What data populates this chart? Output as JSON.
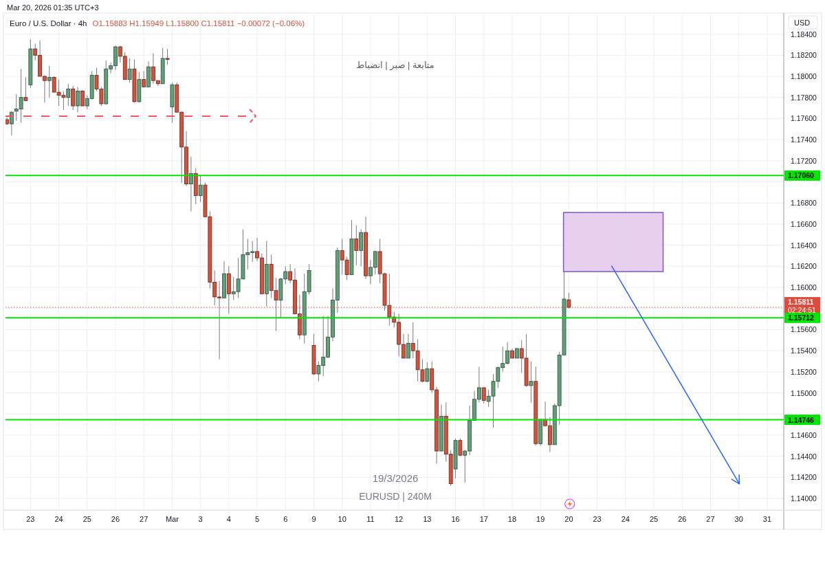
{
  "chart_data": {
    "type": "candlestick",
    "title": "Euro / U.S. Dollar · 4h",
    "subtitle": "O1.15883 H1.15949 L1.15800 C1.15811 −0.00072 (−0.06%)",
    "ylabel": "USD",
    "annotations": [
      "Mar 20, 2026 01:35 UTC+3",
      "متابعة | صبر | انضباط",
      "19/3/2026",
      "EURUSD | 240M",
      "02:24:51"
    ],
    "categories": [
      null,
      null,
      null,
      null,
      null,
      "23",
      null,
      null,
      null,
      null,
      null,
      "24",
      null,
      null,
      null,
      null,
      null,
      "25",
      null,
      null,
      null,
      null,
      null,
      "26",
      null,
      null,
      null,
      null,
      null,
      "27",
      null,
      null,
      null,
      null,
      null,
      "Mar",
      null,
      null,
      null,
      null,
      null,
      "3",
      null,
      null,
      null,
      null,
      null,
      "4",
      null,
      null,
      null,
      null,
      null,
      "5",
      null,
      null,
      null,
      null,
      null,
      "6",
      null,
      null,
      null,
      null,
      null,
      "9",
      null,
      null,
      null,
      null,
      null,
      "10",
      null,
      null,
      null,
      null,
      null,
      "11",
      null,
      null,
      null,
      null,
      null,
      "12",
      null,
      null,
      null,
      null,
      null,
      "13",
      null,
      null,
      null,
      null,
      null,
      "16",
      null,
      null,
      null,
      null,
      null,
      "17",
      null,
      null,
      null,
      null,
      null,
      "18",
      null,
      null,
      null,
      null,
      null,
      "19",
      null,
      null,
      null,
      null,
      null,
      "20",
      null,
      null,
      null,
      null,
      null,
      "23",
      null,
      null,
      null,
      null,
      null,
      "24",
      null,
      null,
      null,
      null,
      null,
      "25",
      null,
      null,
      null,
      null,
      null,
      "26",
      null,
      null,
      null,
      null,
      null,
      "27",
      null,
      null,
      null,
      null,
      null,
      "30",
      null,
      null,
      null,
      null,
      null,
      "31",
      null,
      null,
      null
    ],
    "ohlc": [
      [
        1.1759,
        1.1761,
        1.1754,
        1.1755
      ],
      [
        1.1755,
        1.1767,
        1.1744,
        1.1766
      ],
      [
        1.1767,
        1.1783,
        1.1758,
        1.1769
      ],
      [
        1.1769,
        1.1807,
        1.1756,
        1.178
      ],
      [
        1.178,
        1.1799,
        1.1777,
        1.1777
      ],
      [
        1.1792,
        1.1835,
        1.1789,
        1.1826
      ],
      [
        1.1826,
        1.1831,
        1.1815,
        1.182
      ],
      [
        1.182,
        1.1834,
        1.18,
        1.18
      ],
      [
        1.18,
        1.1801,
        1.1775,
        1.1796
      ],
      [
        1.1796,
        1.181,
        1.178,
        1.1799
      ],
      [
        1.1799,
        1.18,
        1.1785,
        1.1785
      ],
      [
        1.1785,
        1.1797,
        1.1772,
        1.1782
      ],
      [
        1.1782,
        1.1786,
        1.1768,
        1.178
      ],
      [
        1.178,
        1.1793,
        1.1772,
        1.1788
      ],
      [
        1.1788,
        1.1791,
        1.1768,
        1.1772
      ],
      [
        1.1772,
        1.179,
        1.1766,
        1.1786
      ],
      [
        1.1786,
        1.1787,
        1.1772,
        1.1772
      ],
      [
        1.1772,
        1.1782,
        1.1769,
        1.1779
      ],
      [
        1.1779,
        1.1805,
        1.1778,
        1.1801
      ],
      [
        1.1801,
        1.1808,
        1.1786,
        1.1788
      ],
      [
        1.1788,
        1.179,
        1.1772,
        1.1774
      ],
      [
        1.1774,
        1.1815,
        1.1773,
        1.1807
      ],
      [
        1.1807,
        1.1813,
        1.1803,
        1.181
      ],
      [
        1.181,
        1.1829,
        1.1806,
        1.1828
      ],
      [
        1.1828,
        1.1829,
        1.1813,
        1.1819
      ],
      [
        1.1819,
        1.1823,
        1.1797,
        1.1797
      ],
      [
        1.1797,
        1.1817,
        1.1794,
        1.1807
      ],
      [
        1.1807,
        1.1816,
        1.1775,
        1.1776
      ],
      [
        1.1776,
        1.1804,
        1.1775,
        1.1797
      ],
      [
        1.1797,
        1.1805,
        1.179,
        1.179
      ],
      [
        1.179,
        1.1814,
        1.179,
        1.1809
      ],
      [
        1.1809,
        1.1822,
        1.1793,
        1.1796
      ],
      [
        1.1796,
        1.1796,
        1.1791,
        1.1793
      ],
      [
        1.1793,
        1.1827,
        1.1793,
        1.1817
      ],
      [
        1.1817,
        1.1826,
        1.1811,
        1.1816
      ],
      [
        1.1771,
        1.1794,
        1.1756,
        1.1792
      ],
      [
        1.1792,
        1.1794,
        1.1766,
        1.1766
      ],
      [
        1.1766,
        1.1767,
        1.1699,
        1.1733
      ],
      [
        1.1733,
        1.1748,
        1.1696,
        1.1698
      ],
      [
        1.1698,
        1.1724,
        1.1672,
        1.1708
      ],
      [
        1.1708,
        1.1713,
        1.1679,
        1.1687
      ],
      [
        1.1687,
        1.1706,
        1.1681,
        1.1697
      ],
      [
        1.1697,
        1.1699,
        1.1666,
        1.1667
      ],
      [
        1.1667,
        1.1672,
        1.1599,
        1.1605
      ],
      [
        1.1605,
        1.1616,
        1.1583,
        1.1591
      ],
      [
        1.1591,
        1.1606,
        1.1532,
        1.159
      ],
      [
        1.159,
        1.1625,
        1.159,
        1.1613
      ],
      [
        1.1613,
        1.162,
        1.1575,
        1.1594
      ],
      [
        1.1594,
        1.161,
        1.1588,
        1.1596
      ],
      [
        1.1596,
        1.1628,
        1.159,
        1.1608
      ],
      [
        1.1608,
        1.1655,
        1.1608,
        1.1631
      ],
      [
        1.1631,
        1.1646,
        1.1617,
        1.1633
      ],
      [
        1.1633,
        1.1644,
        1.1624,
        1.1634
      ],
      [
        1.1634,
        1.1647,
        1.1625,
        1.1628
      ],
      [
        1.1628,
        1.1632,
        1.1594,
        1.1594
      ],
      [
        1.1594,
        1.1644,
        1.1582,
        1.1622
      ],
      [
        1.1622,
        1.1631,
        1.159,
        1.1597
      ],
      [
        1.1597,
        1.1609,
        1.1559,
        1.1588
      ],
      [
        1.1588,
        1.1609,
        1.1571,
        1.1608
      ],
      [
        1.1608,
        1.162,
        1.1603,
        1.1615
      ],
      [
        1.1615,
        1.1622,
        1.1604,
        1.1607
      ],
      [
        1.1607,
        1.1618,
        1.1575,
        1.1575
      ],
      [
        1.1575,
        1.1593,
        1.1551,
        1.1555
      ],
      [
        1.1555,
        1.1613,
        1.1547,
        1.1596
      ],
      [
        1.1596,
        1.1622,
        1.1593,
        1.1616
      ],
      [
        1.1545,
        1.1556,
        1.1517,
        1.1518
      ],
      [
        1.1518,
        1.153,
        1.1511,
        1.1526
      ],
      [
        1.1526,
        1.1573,
        1.1516,
        1.1534
      ],
      [
        1.1534,
        1.1573,
        1.1533,
        1.1553
      ],
      [
        1.1553,
        1.1599,
        1.1549,
        1.1588
      ],
      [
        1.1588,
        1.1638,
        1.1576,
        1.1635
      ],
      [
        1.1635,
        1.1646,
        1.1612,
        1.1626
      ],
      [
        1.1626,
        1.1629,
        1.1607,
        1.1612
      ],
      [
        1.1612,
        1.1664,
        1.1612,
        1.1646
      ],
      [
        1.1646,
        1.1659,
        1.1621,
        1.1635
      ],
      [
        1.1635,
        1.1655,
        1.162,
        1.1652
      ],
      [
        1.1652,
        1.1667,
        1.1608,
        1.1611
      ],
      [
        1.1611,
        1.1626,
        1.1603,
        1.1619
      ],
      [
        1.1619,
        1.1635,
        1.1612,
        1.1634
      ],
      [
        1.1634,
        1.1646,
        1.1604,
        1.1613
      ],
      [
        1.1613,
        1.1614,
        1.1578,
        1.1583
      ],
      [
        1.1583,
        1.1613,
        1.1564,
        1.1572
      ],
      [
        1.1572,
        1.1577,
        1.1562,
        1.1567
      ],
      [
        1.1567,
        1.1575,
        1.1535,
        1.1546
      ],
      [
        1.1546,
        1.1556,
        1.1533,
        1.1533
      ],
      [
        1.1533,
        1.1556,
        1.1533,
        1.1547
      ],
      [
        1.1547,
        1.1567,
        1.1533,
        1.154
      ],
      [
        1.154,
        1.1551,
        1.1511,
        1.1522
      ],
      [
        1.1522,
        1.1532,
        1.151,
        1.1511
      ],
      [
        1.1511,
        1.1529,
        1.151,
        1.1523
      ],
      [
        1.1523,
        1.153,
        1.15,
        1.1503
      ],
      [
        1.1503,
        1.1506,
        1.1433,
        1.1445
      ],
      [
        1.1445,
        1.1489,
        1.1445,
        1.1478
      ],
      [
        1.1478,
        1.1491,
        1.1435,
        1.1442
      ],
      [
        1.1442,
        1.1446,
        1.1412,
        1.1414
      ],
      [
        1.1428,
        1.1457,
        1.1419,
        1.1455
      ],
      [
        1.1455,
        1.1457,
        1.144,
        1.1441
      ],
      [
        1.1441,
        1.1446,
        1.1415,
        1.1445
      ],
      [
        1.1445,
        1.1488,
        1.1441,
        1.1474
      ],
      [
        1.1474,
        1.1502,
        1.1474,
        1.1494
      ],
      [
        1.1494,
        1.1525,
        1.1491,
        1.1505
      ],
      [
        1.1505,
        1.1505,
        1.149,
        1.1493
      ],
      [
        1.1492,
        1.1503,
        1.1487,
        1.1497
      ],
      [
        1.1497,
        1.1518,
        1.1467,
        1.1511
      ],
      [
        1.1511,
        1.1525,
        1.1505,
        1.1524
      ],
      [
        1.1524,
        1.1544,
        1.152,
        1.1528
      ],
      [
        1.1528,
        1.1548,
        1.1527,
        1.154
      ],
      [
        1.154,
        1.1542,
        1.1533,
        1.1533
      ],
      [
        1.1533,
        1.1543,
        1.1533,
        1.1542
      ],
      [
        1.1542,
        1.155,
        1.1519,
        1.1533
      ],
      [
        1.1533,
        1.1556,
        1.1506,
        1.1507
      ],
      [
        1.1507,
        1.153,
        1.1491,
        1.1511
      ],
      [
        1.1511,
        1.1525,
        1.145,
        1.1452
      ],
      [
        1.1452,
        1.1475,
        1.145,
        1.1475
      ],
      [
        1.1475,
        1.1492,
        1.1468,
        1.1469
      ],
      [
        1.1469,
        1.1477,
        1.1444,
        1.1451
      ],
      [
        1.1451,
        1.149,
        1.1451,
        1.1488
      ],
      [
        1.1488,
        1.1539,
        1.147,
        1.1536
      ],
      [
        1.1536,
        1.1616,
        1.1536,
        1.1589
      ],
      [
        1.15883,
        1.15949,
        1.158,
        1.15811
      ],
      null,
      null,
      null,
      null,
      null,
      null,
      null,
      null,
      null,
      null,
      null,
      null,
      null,
      null,
      null,
      null,
      null,
      null,
      null,
      null,
      null,
      null,
      null,
      null,
      null,
      null,
      null,
      null,
      null,
      null,
      null,
      null,
      null,
      null,
      null,
      null,
      null,
      null,
      null,
      null,
      null,
      null,
      null,
      null,
      null
    ],
    "colors": [
      "#d6523c",
      "#62a07a",
      "#62a07a",
      "#62a07a",
      "#d6523c",
      "#62a07a",
      "#d6523c",
      "#d6523c",
      "#d6523c",
      "#62a07a",
      "#d6523c",
      "#d6523c",
      "#d6523c",
      "#62a07a",
      "#d6523c",
      "#62a07a",
      "#d6523c",
      "#62a07a",
      "#62a07a",
      "#d6523c",
      "#d6523c",
      "#62a07a",
      "#62a07a",
      "#62a07a",
      "#d6523c",
      "#d6523c",
      "#62a07a",
      "#d6523c",
      "#62a07a",
      "#d6523c",
      "#62a07a",
      "#d6523c",
      "#d6523c",
      "#62a07a",
      "#d6523c",
      "#62a07a",
      "#d6523c",
      "#d6523c",
      "#d6523c",
      "#62a07a",
      "#d6523c",
      "#62a07a",
      "#d6523c",
      "#d6523c",
      "#d6523c",
      "#d6523c",
      "#62a07a",
      "#d6523c",
      "#62a07a",
      "#62a07a",
      "#62a07a",
      "#62a07a",
      "#62a07a",
      "#d6523c",
      "#d6523c",
      "#62a07a",
      "#d6523c",
      "#d6523c",
      "#62a07a",
      "#62a07a",
      "#d6523c",
      "#d6523c",
      "#d6523c",
      "#62a07a",
      "#62a07a",
      "#d6523c",
      "#62a07a",
      "#62a07a",
      "#62a07a",
      "#62a07a",
      "#62a07a",
      "#d6523c",
      "#d6523c",
      "#62a07a",
      "#d6523c",
      "#62a07a",
      "#d6523c",
      "#62a07a",
      "#62a07a",
      "#d6523c",
      "#d6523c",
      "#d6523c",
      "#d6523c",
      "#d6523c",
      "#d6523c",
      "#62a07a",
      "#d6523c",
      "#d6523c",
      "#d6523c",
      "#62a07a",
      "#d6523c",
      "#d6523c",
      "#62a07a",
      "#d6523c",
      "#d6523c",
      "#62a07a",
      "#d6523c",
      "#62a07a",
      "#62a07a",
      "#62a07a",
      "#62a07a",
      "#d6523c",
      "#62a07a",
      "#62a07a",
      "#62a07a",
      "#62a07a",
      "#62a07a",
      "#d6523c",
      "#62a07a",
      "#d6523c",
      "#d6523c",
      "#62a07a",
      "#d6523c",
      "#62a07a",
      "#d6523c",
      "#d6523c",
      "#62a07a",
      "#62a07a",
      "#62a07a",
      "#d6523c",
      null,
      null,
      null,
      null,
      null,
      null,
      null,
      null,
      null,
      null,
      null,
      null,
      null,
      null,
      null,
      null,
      null,
      null,
      null,
      null,
      null,
      null,
      null,
      null,
      null,
      null,
      null,
      null,
      null,
      null,
      null,
      null,
      null,
      null,
      null,
      null,
      null,
      null,
      null,
      null,
      null,
      null,
      null,
      null,
      null
    ],
    "ylim": [
      1.1389,
      1.1858
    ],
    "yticks": [
      {
        "value": 1.14,
        "label": "1.14000"
      },
      {
        "value": 1.142,
        "label": "1.14200"
      },
      {
        "value": 1.144,
        "label": "1.14400"
      },
      {
        "value": 1.146,
        "label": "1.14600"
      },
      {
        "value": 1.148,
        "label": null
      },
      {
        "value": 1.15,
        "label": "1.15000"
      },
      {
        "value": 1.152,
        "label": "1.15200"
      },
      {
        "value": 1.154,
        "label": "1.15400"
      },
      {
        "value": 1.156,
        "label": "1.15600"
      },
      {
        "value": 1.158,
        "label": null
      },
      {
        "value": 1.16,
        "label": "1.16000"
      },
      {
        "value": 1.162,
        "label": "1.16200"
      },
      {
        "value": 1.164,
        "label": "1.16400"
      },
      {
        "value": 1.166,
        "label": "1.16600"
      },
      {
        "value": 1.168,
        "label": "1.16800"
      },
      {
        "value": 1.17,
        "label": null
      },
      {
        "value": 1.172,
        "label": "1.17200"
      },
      {
        "value": 1.174,
        "label": "1.17400"
      },
      {
        "value": 1.176,
        "label": "1.17600"
      },
      {
        "value": 1.178,
        "label": "1.17800"
      },
      {
        "value": 1.18,
        "label": "1.18000"
      },
      {
        "value": 1.182,
        "label": "1.18200"
      },
      {
        "value": 1.184,
        "label": "1.18400"
      }
    ],
    "ref_lines": [
      {
        "axis": "y",
        "value": 1.1706,
        "label": "1.17060",
        "color": "#00e600",
        "line_style": "solid"
      },
      {
        "axis": "y",
        "value": 1.15811,
        "label": "1.15811",
        "color": "#e04b3a",
        "line_style": "dotted"
      },
      {
        "axis": "y",
        "value": 1.15712,
        "label": "1.15712",
        "color": "#00e600",
        "line_style": "solid"
      },
      {
        "axis": "y",
        "value": 1.14746,
        "label": "1.14746",
        "color": "#00e600",
        "line_style": "solid"
      }
    ],
    "bands": [
      {
        "axis": "y",
        "from": 1.1615,
        "to": 1.1671,
        "color": "#e3c8ec"
      }
    ],
    "grid": true
  }
}
